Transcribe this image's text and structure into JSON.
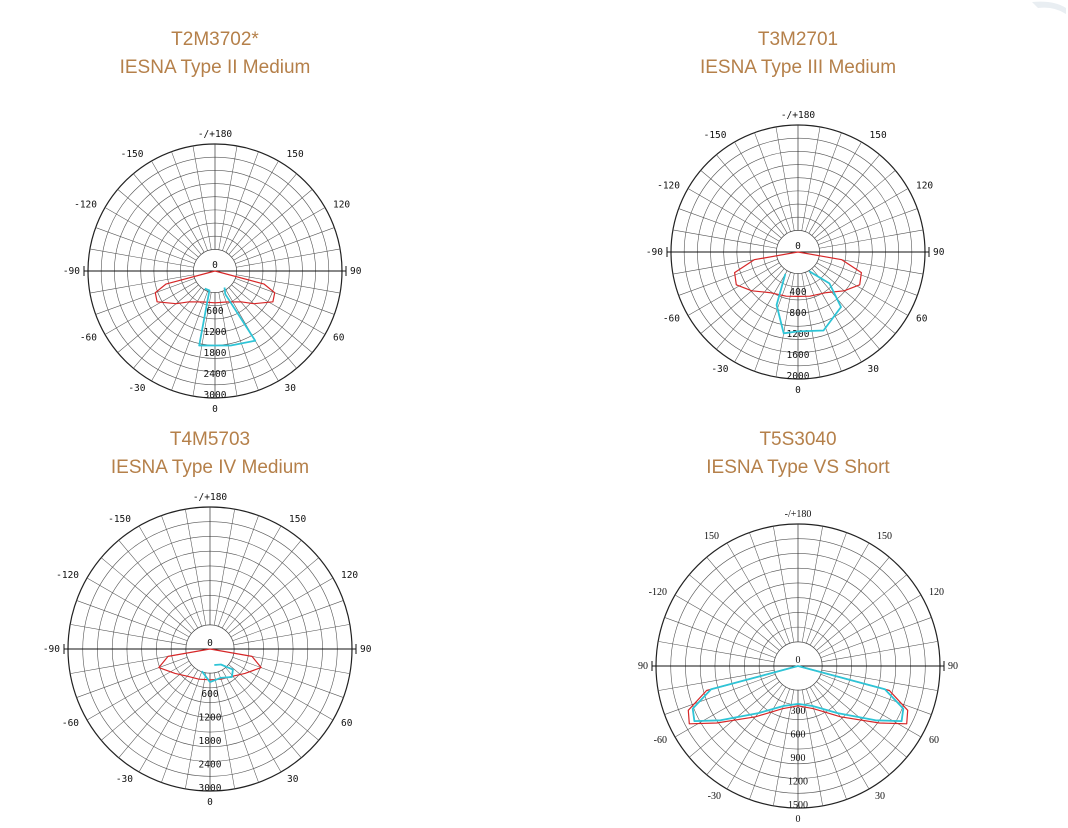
{
  "chart_data": [
    {
      "type": "polar",
      "title": "T2M3702*",
      "subtitle": "IESNA Type II Medium",
      "angle_labels": {
        "top": "-/+180",
        "left150": "-150",
        "right150": "150",
        "left120": "-120",
        "right120": "120",
        "left90": "-90",
        "right90": "90",
        "left60": "-60",
        "right60": "60",
        "left30": "-30",
        "right30": "30",
        "bottom": "0"
      },
      "radial_ticks": [
        "0",
        "600",
        "1200",
        "1800",
        "2400",
        "3000"
      ],
      "radial_max": 3000,
      "series": [
        {
          "color": "#d62728",
          "points": [
            [
              -90,
              0
            ],
            [
              -75,
              1200
            ],
            [
              -70,
              1500
            ],
            [
              -62,
              1550
            ],
            [
              -50,
              1200
            ],
            [
              -40,
              950
            ],
            [
              -20,
              780
            ],
            [
              0,
              750
            ],
            [
              20,
              780
            ],
            [
              40,
              950
            ],
            [
              50,
              1200
            ],
            [
              62,
              1550
            ],
            [
              70,
              1500
            ],
            [
              75,
              1200
            ],
            [
              90,
              0
            ]
          ]
        },
        {
          "color": "#2ec4d6",
          "points": [
            [
              -30,
              480
            ],
            [
              -16,
              480
            ],
            [
              -12,
              1800
            ],
            [
              12,
              1800
            ],
            [
              30,
              1900
            ],
            [
              24,
              600
            ],
            [
              30,
              450
            ]
          ]
        }
      ]
    },
    {
      "type": "polar",
      "title": "T3M2701",
      "subtitle": "IESNA Type III Medium",
      "angle_labels": {
        "top": "-/+180",
        "left150": "-150",
        "right150": "150",
        "left120": "-120",
        "right120": "120",
        "left90": "-90",
        "right90": "90",
        "left60": "-60",
        "right60": "60",
        "left30": "-30",
        "right30": "30",
        "bottom": "0"
      },
      "radial_ticks": [
        "0",
        "400",
        "800",
        "1200",
        "1600",
        "2000"
      ],
      "radial_max": 2000,
      "series": [
        {
          "color": "#d62728",
          "points": [
            [
              -90,
              0
            ],
            [
              -80,
              700
            ],
            [
              -72,
              1050
            ],
            [
              -62,
              1100
            ],
            [
              -50,
              950
            ],
            [
              -35,
              780
            ],
            [
              -15,
              720
            ],
            [
              0,
              700
            ],
            [
              15,
              720
            ],
            [
              35,
              780
            ],
            [
              50,
              950
            ],
            [
              62,
              1100
            ],
            [
              72,
              1050
            ],
            [
              80,
              700
            ],
            [
              90,
              0
            ]
          ]
        },
        {
          "color": "#2ec4d6",
          "points": [
            [
              -30,
              400
            ],
            [
              -22,
              900
            ],
            [
              -10,
              1300
            ],
            [
              0,
              1250
            ],
            [
              18,
              1300
            ],
            [
              38,
              1100
            ],
            [
              45,
              700
            ],
            [
              30,
              350
            ]
          ]
        }
      ]
    },
    {
      "type": "polar",
      "title": "T4M5703",
      "subtitle": "IESNA Type IV Medium",
      "angle_labels": {
        "top": "-/+180",
        "left150": "-150",
        "right150": "150",
        "left120": "-120",
        "right120": "120",
        "left90": "-90",
        "right90": "90",
        "left60": "-60",
        "right60": "60",
        "left30": "-30",
        "right30": "30",
        "bottom": "0"
      },
      "radial_ticks": [
        "0",
        "600",
        "1200",
        "1800",
        "2400",
        "3000"
      ],
      "radial_max": 3000,
      "series": [
        {
          "color": "#d62728",
          "points": [
            [
              -90,
              0
            ],
            [
              -80,
              900
            ],
            [
              -70,
              1150
            ],
            [
              -55,
              900
            ],
            [
              -40,
              750
            ],
            [
              -20,
              680
            ],
            [
              0,
              650
            ],
            [
              20,
              680
            ],
            [
              40,
              750
            ],
            [
              55,
              900
            ],
            [
              70,
              1150
            ],
            [
              80,
              900
            ],
            [
              90,
              0
            ]
          ]
        },
        {
          "color": "#2ec4d6",
          "points": [
            [
              -20,
              500
            ],
            [
              0,
              700
            ],
            [
              20,
              650
            ],
            [
              38,
              750
            ],
            [
              48,
              650
            ],
            [
              35,
              400
            ],
            [
              15,
              350
            ]
          ]
        }
      ]
    },
    {
      "type": "polar",
      "title": "T5S3040",
      "subtitle": "IESNA Type VS Short",
      "angle_labels": {
        "top": "-/+180",
        "left150": "150",
        "right150": "150",
        "left120": "-120",
        "right120": "120",
        "left90": "90",
        "right90": "90",
        "left60": "-60",
        "right60": "60",
        "left30": "-30",
        "right30": "30",
        "bottom": "0"
      },
      "radial_ticks": [
        "0",
        "300",
        "600",
        "900",
        "1200",
        "1500"
      ],
      "radial_max": 1500,
      "series": [
        {
          "color": "#d62728",
          "points": [
            [
              -90,
              0
            ],
            [
              -75,
              1000
            ],
            [
              -68,
              1250
            ],
            [
              -62,
              1300
            ],
            [
              -55,
              1050
            ],
            [
              -40,
              700
            ],
            [
              -20,
              480
            ],
            [
              0,
              420
            ],
            [
              20,
              480
            ],
            [
              40,
              700
            ],
            [
              55,
              1050
            ],
            [
              62,
              1300
            ],
            [
              68,
              1250
            ],
            [
              75,
              1000
            ],
            [
              90,
              0
            ]
          ]
        },
        {
          "color": "#2ec4d6",
          "points": [
            [
              -90,
              0
            ],
            [
              -75,
              950
            ],
            [
              -68,
              1200
            ],
            [
              -62,
              1240
            ],
            [
              -55,
              1000
            ],
            [
              -40,
              650
            ],
            [
              -20,
              450
            ],
            [
              0,
              400
            ],
            [
              20,
              450
            ],
            [
              40,
              650
            ],
            [
              55,
              1000
            ],
            [
              62,
              1240
            ],
            [
              68,
              1200
            ],
            [
              75,
              950
            ],
            [
              90,
              0
            ]
          ]
        }
      ]
    }
  ]
}
